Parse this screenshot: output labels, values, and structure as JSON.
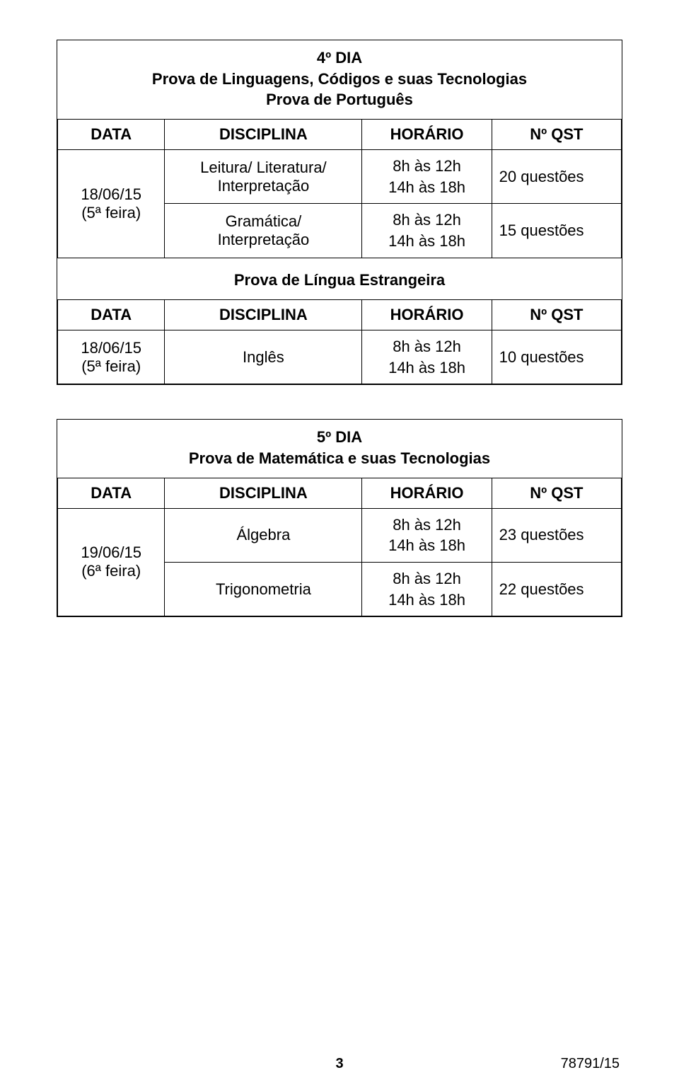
{
  "day4": {
    "title_lines": [
      "4º DIA",
      "Prova de Linguagens, Códigos e suas Tecnologias",
      "Prova de Português"
    ],
    "headers": {
      "data": "DATA",
      "disciplina": "DISCIPLINA",
      "horario": "HORÁRIO",
      "nqst": "Nº QST"
    },
    "date_line1": "18/06/15",
    "date_line2": "(5ª feira)",
    "rows": [
      {
        "disciplina_l1": "Leitura/ Literatura/",
        "disciplina_l2": "Interpretação",
        "horario_l1": "8h às 12h",
        "horario_l2": "14h às 18h",
        "nqst": "20 questões"
      },
      {
        "disciplina_l1": "Gramática/",
        "disciplina_l2": "Interpretação",
        "horario_l1": "8h às 12h",
        "horario_l2": "14h às 18h",
        "nqst": "15 questões"
      }
    ],
    "lang_block_title": "Prova de Língua Estrangeira",
    "lang_row": {
      "date_line1": "18/06/15",
      "date_line2": "(5ª feira)",
      "disciplina": "Inglês",
      "horario_l1": "8h às 12h",
      "horario_l2": "14h às 18h",
      "nqst": "10 questões"
    }
  },
  "day5": {
    "title_lines": [
      "5º DIA",
      "Prova de Matemática e suas Tecnologias"
    ],
    "headers": {
      "data": "DATA",
      "disciplina": "DISCIPLINA",
      "horario": "HORÁRIO",
      "nqst": "Nº QST"
    },
    "date_line1": "19/06/15",
    "date_line2": "(6ª feira)",
    "rows": [
      {
        "disciplina": "Álgebra",
        "horario_l1": "8h às 12h",
        "horario_l2": "14h às 18h",
        "nqst": "23 questões"
      },
      {
        "disciplina": "Trigonometria",
        "horario_l1": "8h às 12h",
        "horario_l2": "14h às 18h",
        "nqst": "22 questões"
      }
    ]
  },
  "footer": {
    "page": "3",
    "docid": "78791/15"
  },
  "style": {
    "font_family": "Arial",
    "font_size_pt": 16,
    "border_color": "#000000",
    "background_color": "#ffffff",
    "text_color": "#000000"
  }
}
